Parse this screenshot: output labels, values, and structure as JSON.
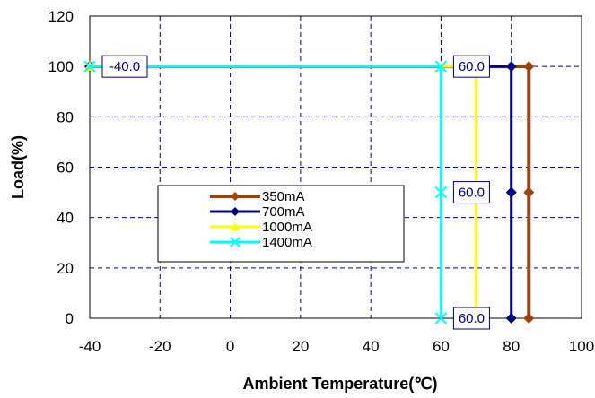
{
  "chart_data": {
    "type": "line",
    "title": "",
    "xlabel": "Ambient Temperature(℃)",
    "ylabel": "Load(%)",
    "xlim": [
      -40,
      100
    ],
    "ylim": [
      0,
      120
    ],
    "x_ticks": [
      "-40",
      "-20",
      "0",
      "20",
      "40",
      "60",
      "80",
      "100"
    ],
    "y_ticks": [
      "0",
      "20",
      "40",
      "60",
      "80",
      "100",
      "120"
    ],
    "grid": true,
    "legend_position": "center-left",
    "series": [
      {
        "name": "350mA",
        "color": "#A0410D",
        "marker": "diamond",
        "x": [
          -40,
          85,
          85,
          85
        ],
        "y": [
          100,
          100,
          50,
          0
        ]
      },
      {
        "name": "700mA",
        "color": "#000080",
        "marker": "diamond",
        "x": [
          -40,
          80,
          80,
          80
        ],
        "y": [
          100,
          100,
          50,
          0
        ]
      },
      {
        "name": "1000mA",
        "color": "#FFFF00",
        "marker": "triangle",
        "x": [
          -40,
          70,
          70
        ],
        "y": [
          100,
          100,
          0
        ]
      },
      {
        "name": "1400mA",
        "color": "#00FFFF",
        "marker": "x",
        "x": [
          -40,
          60,
          60,
          60
        ],
        "y": [
          100,
          100,
          50,
          0
        ]
      }
    ],
    "annotations": [
      {
        "text": "-40.0",
        "x": -40,
        "y": 100
      },
      {
        "text": "60.0",
        "x": 60,
        "y": 100
      },
      {
        "text": "60.0",
        "x": 60,
        "y": 50
      },
      {
        "text": "60.0",
        "x": 60,
        "y": 0
      }
    ]
  }
}
